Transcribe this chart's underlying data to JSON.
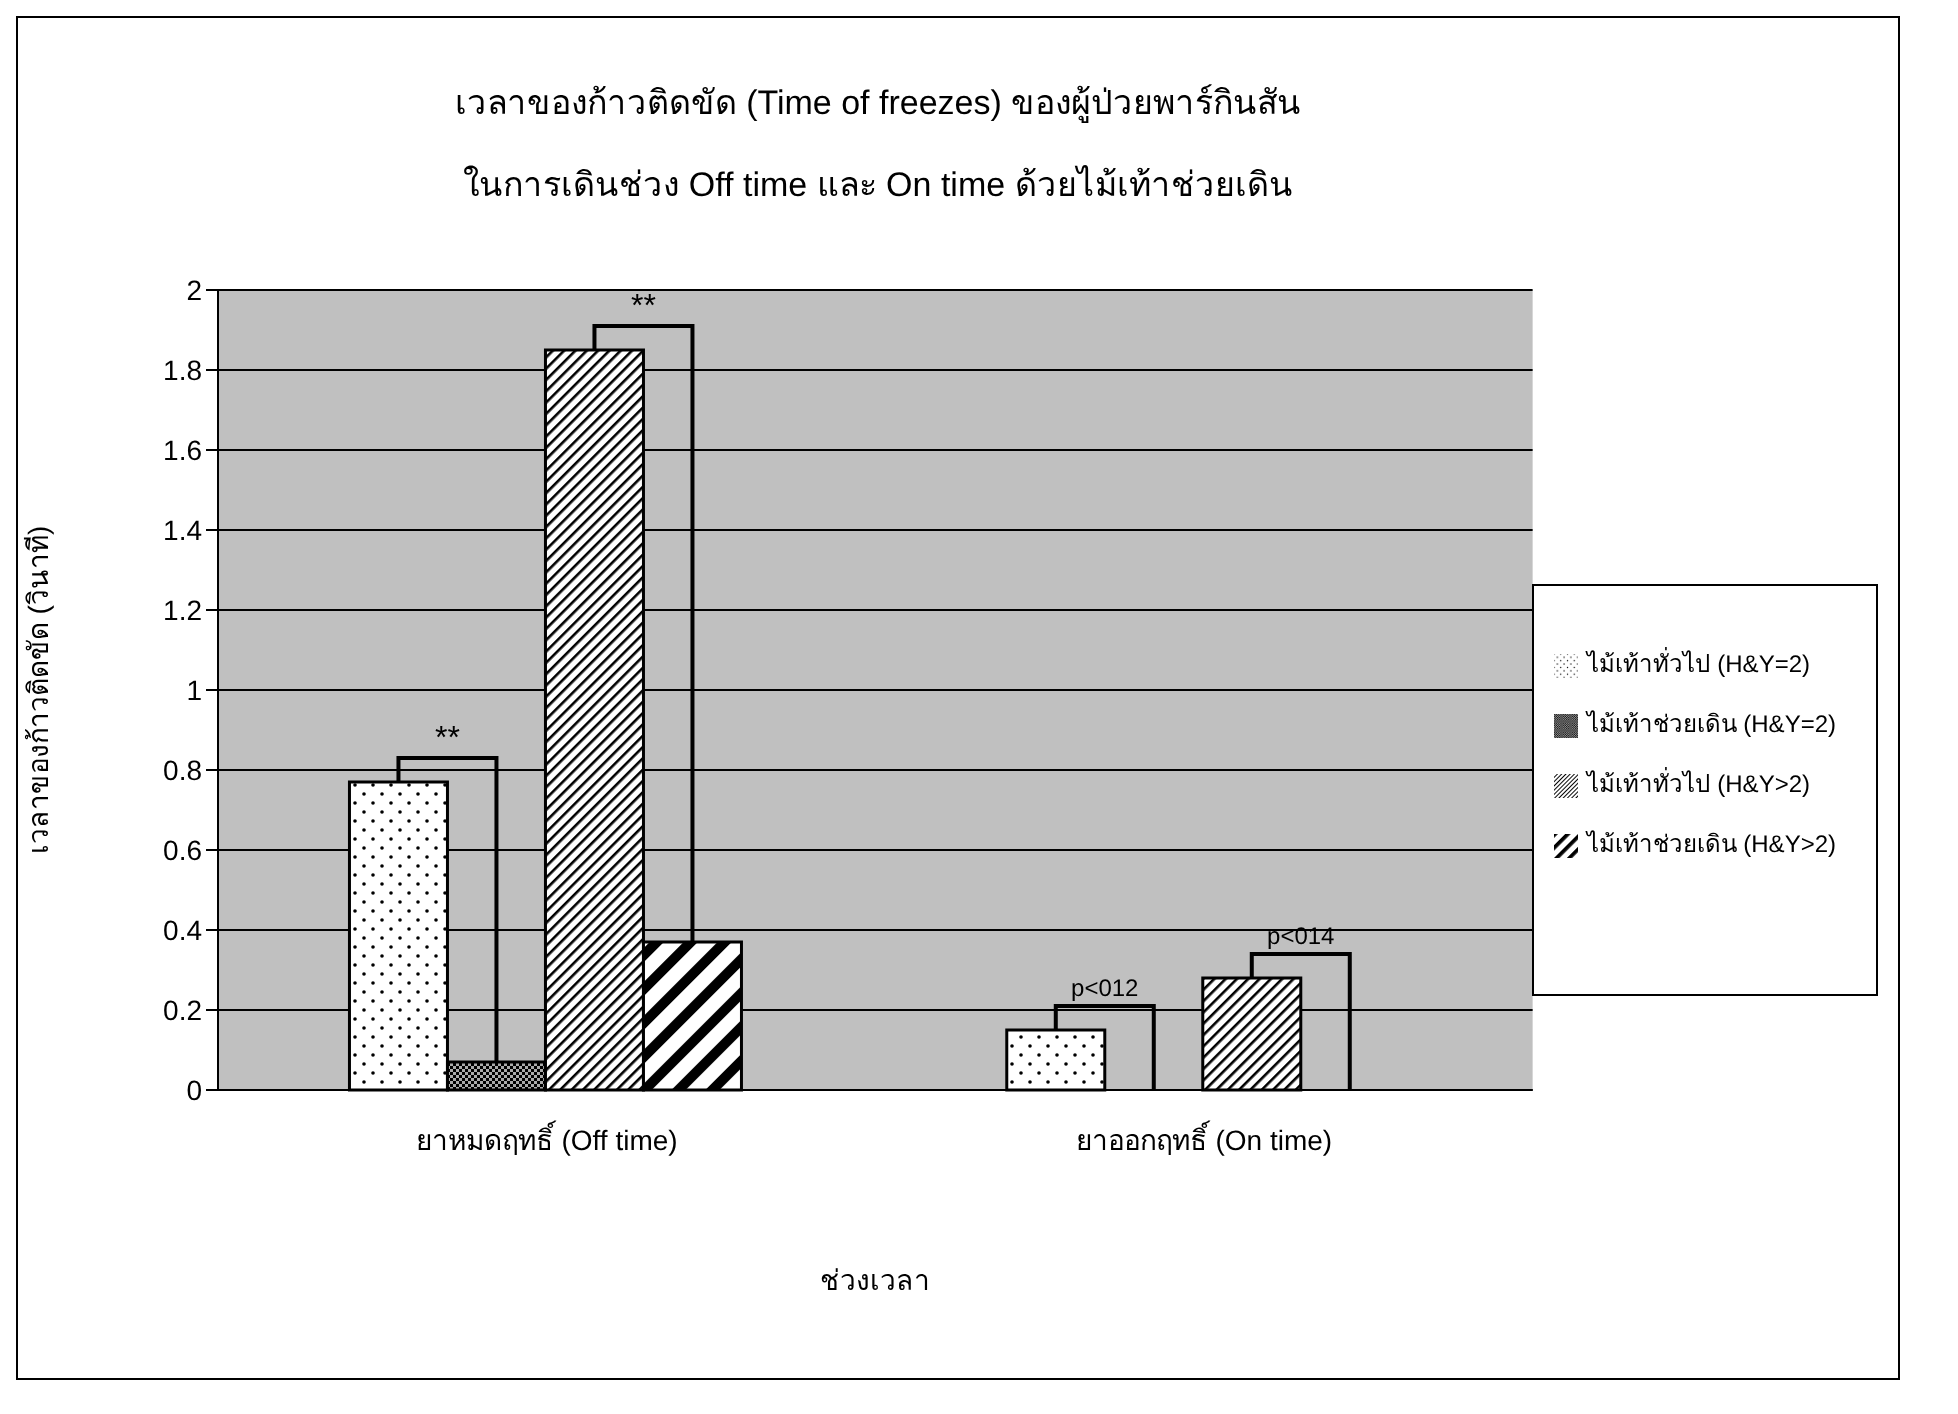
{
  "chart_data": {
    "type": "bar",
    "title": "เวลาของก้าวติดขัด (Time of freezes) ของผู้ป่วยพาร์กินสัน",
    "subtitle": "ในการเดินช่วง Off time และ On time ด้วยไม้เท้าช่วยเดิน",
    "xlabel": "ช่วงเวลา",
    "ylabel": "เวลาของก้าวติดขัด (วินาที)",
    "categories": [
      "ยาหมดฤทธิ์ (Off time)",
      "ยาออกฤทธิ์ (On time)"
    ],
    "series": [
      {
        "name": "ไม้เท้าทั่วไป (H&Y=2)",
        "color": "#000000",
        "values": [
          0.77,
          0.15
        ]
      },
      {
        "name": "ไม้เท้าช่วยเดิน (H&Y=2)",
        "color": "#000000",
        "values": [
          0.07,
          0
        ]
      },
      {
        "name": "ไม้เท้าทั่วไป (H&Y>2)",
        "color": "#000000",
        "values": [
          1.85,
          0.28
        ]
      },
      {
        "name": "ไม้เท้าช่วยเดิน (H&Y>2)",
        "color": "#000000",
        "values": [
          0.37,
          0
        ]
      }
    ],
    "ylim": [
      0,
      2
    ],
    "yticks": [
      0,
      0.2,
      0.4,
      0.6,
      0.8,
      1,
      1.2,
      1.4,
      1.6,
      1.8,
      2
    ],
    "grid": "y",
    "legend": "right",
    "annotations": [
      "**",
      "**",
      "p<012",
      "p<014"
    ]
  }
}
